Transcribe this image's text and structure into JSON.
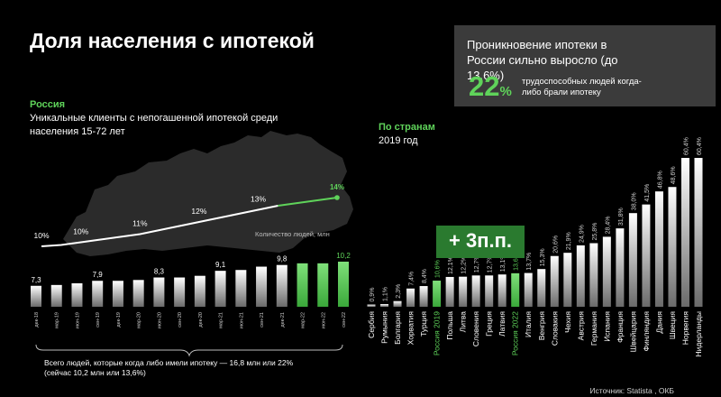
{
  "title": "Доля населения с ипотекой",
  "callout": {
    "headline": "Проникновение ипотеки в России сильно выросло (до 13,6%)",
    "big_value": "22",
    "big_unit": "%",
    "note": "трудоспособных людей когда-либо брали ипотеку"
  },
  "russia": {
    "heading": "Россия",
    "subtitle": "Уникальные клиенты с непогашенной ипотекой среди населения 15-72 лет",
    "footnote": "Всего людей, которые когда либо имели ипотеку — 16,8 млн или 22% (сейчас 10,2 млн или 13,6%)"
  },
  "countries_heading": "По странам",
  "countries_sub": "2019 год",
  "badge": "+ 3п.п.",
  "source": "Источник: Statista , ОКБ",
  "colors": {
    "accent": "#5fd35a",
    "callout_bg": "#3b3b3b",
    "bar_grey": "#d8d8d8"
  },
  "chart_data": [
    {
      "type": "line",
      "title": "",
      "ylabel": "",
      "x": [
        "дек-18",
        "мар-19",
        "июн-19",
        "сен-19",
        "дек-19",
        "мар-20",
        "июн-20",
        "сен-20",
        "дек-20",
        "мар-21",
        "июн-21",
        "сен-21",
        "дек-21",
        "мар-22",
        "июн-22",
        "сен-22"
      ],
      "point_labels": [
        {
          "x": "дек-18",
          "label": "10%"
        },
        {
          "x": "июн-19",
          "label": "10%"
        },
        {
          "x": "мар-20",
          "label": "11%"
        },
        {
          "x": "дек-20",
          "label": "12%"
        },
        {
          "x": "сен-21",
          "label": "13%"
        },
        {
          "x": "сен-22",
          "label": "14%"
        }
      ],
      "values": [
        10.0,
        10.1,
        10.3,
        10.5,
        10.7,
        10.9,
        11.2,
        11.5,
        11.8,
        12.1,
        12.4,
        12.7,
        13.0,
        13.2,
        13.4,
        13.6
      ],
      "highlight_from": "дек-21"
    },
    {
      "type": "bar",
      "title": "",
      "ylabel": "Количество людей, млн",
      "categories": [
        "дек-18",
        "мар-19",
        "июн-19",
        "сен-19",
        "дек-19",
        "мар-20",
        "июн-20",
        "сен-20",
        "дек-20",
        "мар-21",
        "июн-21",
        "сен-21",
        "дек-21",
        "мар-22",
        "июн-22",
        "сен-22"
      ],
      "values": [
        7.3,
        7.4,
        7.6,
        7.9,
        7.9,
        8.0,
        8.3,
        8.3,
        8.5,
        9.1,
        9.2,
        9.6,
        9.8,
        10.0,
        10.0,
        10.2
      ],
      "labels": {
        "дек-18": "7,3",
        "сен-19": "7,9",
        "июн-20": "8,3",
        "мар-21": "9,1",
        "дек-21": "9,8",
        "сен-22": "10,2"
      },
      "highlighted": [
        "мар-22",
        "июн-22",
        "сен-22"
      ]
    },
    {
      "type": "bar",
      "title": "",
      "categories": [
        "Сербия",
        "Румыния",
        "Болгария",
        "Хорватия",
        "Турция",
        "Россия 2019",
        "Польша",
        "Литва",
        "Словения",
        "Греция",
        "Латвия",
        "Россия 2022",
        "Италия",
        "Венгрия",
        "Словакия",
        "Чехия",
        "Австрия",
        "Германия",
        "Испания",
        "Франция",
        "Швейцария",
        "Финляндия",
        "Дания",
        "Швеция",
        "Норвегия",
        "Нидерланды"
      ],
      "values": [
        0.9,
        1.1,
        2.3,
        7.4,
        8.4,
        10.6,
        12.1,
        12.2,
        12.7,
        12.7,
        13.1,
        13.6,
        13.7,
        15.3,
        20.6,
        21.9,
        24.9,
        25.8,
        28.4,
        31.8,
        38.0,
        41.5,
        46.8,
        48.6,
        60.4,
        60.4
      ],
      "labels": [
        "0,9%",
        "1,1%",
        "2,3%",
        "7,4%",
        "8,4%",
        "10,6%",
        "12,1%",
        "12,2%",
        "12,7%",
        "12,7%",
        "13,1%",
        "13,6%",
        "13,7%",
        "15,3%",
        "20,6%",
        "21,9%",
        "24,9%",
        "25,8%",
        "28,4%",
        "31,8%",
        "38,0%",
        "41,5%",
        "46,8%",
        "48,6%",
        "60,4%",
        "60,4%"
      ],
      "highlighted": [
        "Россия 2019",
        "Россия 2022"
      ]
    }
  ]
}
